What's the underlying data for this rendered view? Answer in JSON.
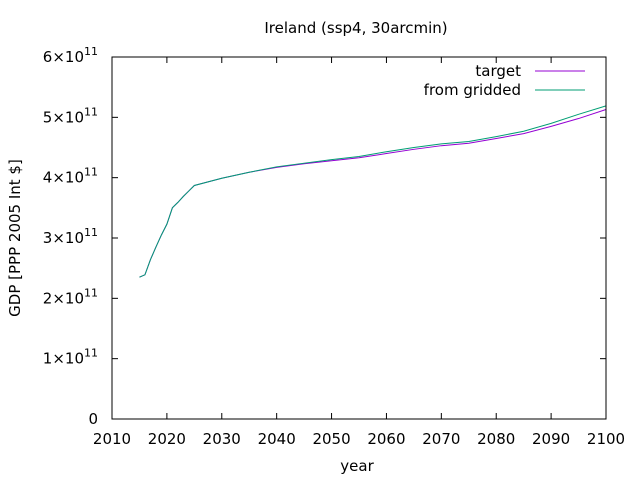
{
  "chart_data": {
    "type": "line",
    "title": "Ireland (ssp4, 30arcmin)",
    "xlabel": "year",
    "ylabel": "GDP [PPP 2005 Int $]",
    "xlim": [
      2010,
      2100
    ],
    "ylim": [
      0,
      600000000000
    ],
    "xticks": [
      2010,
      2020,
      2030,
      2040,
      2050,
      2060,
      2070,
      2080,
      2090,
      2100
    ],
    "xtick_labels": [
      "2010",
      "2020",
      "2030",
      "2040",
      "2050",
      "2060",
      "2070",
      "2080",
      "2090",
      "2100"
    ],
    "yticks": [
      {
        "value": 0,
        "mantissa": "0",
        "exponent": ""
      },
      {
        "value": 100000000000,
        "mantissa": "1×10",
        "exponent": "11"
      },
      {
        "value": 200000000000,
        "mantissa": "2×10",
        "exponent": "11"
      },
      {
        "value": 300000000000,
        "mantissa": "3×10",
        "exponent": "11"
      },
      {
        "value": 400000000000,
        "mantissa": "4×10",
        "exponent": "11"
      },
      {
        "value": 500000000000,
        "mantissa": "5×10",
        "exponent": "11"
      },
      {
        "value": 600000000000,
        "mantissa": "6×10",
        "exponent": "11"
      }
    ],
    "grid": false,
    "legend_position": "top-right",
    "series": [
      {
        "name": "target",
        "color": "#9400d3",
        "x": [
          2015,
          2016,
          2017,
          2018,
          2019,
          2020,
          2021,
          2022,
          2023,
          2024,
          2025,
          2030,
          2035,
          2040,
          2045,
          2050,
          2055,
          2060,
          2065,
          2070,
          2075,
          2080,
          2085,
          2090,
          2095,
          2100
        ],
        "y": [
          235000000000,
          239000000000,
          264000000000,
          285000000000,
          305000000000,
          323000000000,
          350000000000,
          359000000000,
          369000000000,
          378000000000,
          387000000000,
          399000000000,
          409000000000,
          417000000000,
          423000000000,
          428000000000,
          433000000000,
          440000000000,
          447000000000,
          453000000000,
          457000000000,
          465000000000,
          473000000000,
          485000000000,
          498000000000,
          513000000000
        ]
      },
      {
        "name": "from gridded",
        "color": "#009e73",
        "x": [
          2015,
          2016,
          2017,
          2018,
          2019,
          2020,
          2021,
          2022,
          2023,
          2024,
          2025,
          2030,
          2035,
          2040,
          2045,
          2050,
          2055,
          2060,
          2065,
          2070,
          2075,
          2080,
          2085,
          2090,
          2095,
          2100
        ],
        "y": [
          235000000000,
          239000000000,
          264000000000,
          285000000000,
          305000000000,
          323000000000,
          350000000000,
          359000000000,
          369000000000,
          378000000000,
          387000000000,
          399000000000,
          409000000000,
          418000000000,
          424000000000,
          430000000000,
          435000000000,
          443000000000,
          450000000000,
          456000000000,
          460000000000,
          468000000000,
          477000000000,
          490000000000,
          505000000000,
          519000000000
        ]
      }
    ]
  }
}
